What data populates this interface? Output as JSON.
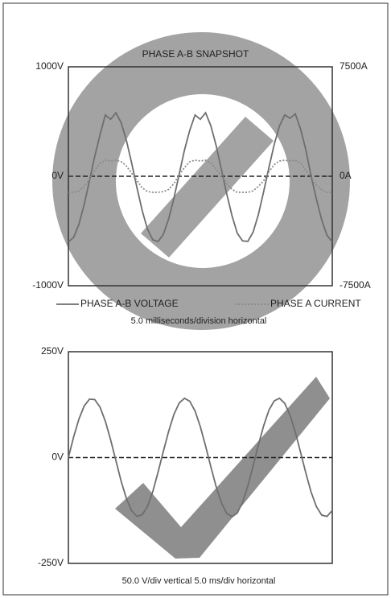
{
  "chart_data": [
    {
      "type": "line",
      "title": "PHASE A-B SNAPSHOT",
      "xlabel": "5.0 milliseconds/division horizontal",
      "x": [
        0,
        1,
        2,
        3,
        4,
        5,
        6,
        7,
        8,
        9,
        10,
        11,
        12,
        13,
        14,
        15,
        16,
        17,
        18,
        19,
        20,
        21,
        22,
        23,
        24,
        25,
        26,
        27,
        28,
        29,
        30,
        31,
        32,
        33,
        34,
        35,
        36,
        37,
        38,
        39,
        40,
        41,
        42,
        43,
        44,
        45,
        46,
        47,
        48,
        49,
        50
      ],
      "xlim": [
        0,
        50
      ],
      "ylim": [
        -1000,
        1000
      ],
      "yticks": [
        {
          "value": -1000,
          "label": "-1000V"
        },
        {
          "value": 0,
          "label": "0V"
        },
        {
          "value": 1000,
          "label": "1000V"
        }
      ],
      "y2lim": [
        -7500,
        7500
      ],
      "y2ticks": [
        {
          "value": -7500,
          "label": "-7500A"
        },
        {
          "value": 0,
          "label": "0A"
        },
        {
          "value": 7500,
          "label": "7500A"
        }
      ],
      "series": [
        {
          "name": "PHASE A-B VOLTAGE",
          "color": "#6e6e6e",
          "line_style": "solid",
          "values": [
            -600,
            -558,
            -438,
            -257,
            -40,
            183,
            380,
            560,
            520,
            580,
            489,
            326,
            118,
            -106,
            -316,
            -485,
            -581,
            -596,
            -530,
            -390,
            -200,
            20,
            240,
            420,
            560,
            520,
            580,
            460,
            280,
            60,
            -160,
            -360,
            -520,
            -590,
            -595,
            -510,
            -350,
            -140,
            80,
            290,
            460,
            560,
            530,
            570,
            430,
            240,
            0,
            -210,
            -400,
            -540,
            -600
          ]
        },
        {
          "name": "PHASE A CURRENT",
          "color": "#8a8a8a",
          "line_style": "dotted",
          "axis": "y2",
          "values": [
            -1100,
            -1100,
            -1000,
            -700,
            -200,
            400,
            900,
            1100,
            1050,
            1100,
            1000,
            700,
            200,
            -300,
            -800,
            -1050,
            -1100,
            -1100,
            -1050,
            -900,
            -500,
            100,
            600,
            1000,
            1100,
            1050,
            1100,
            900,
            500,
            0,
            -500,
            -900,
            -1100,
            -1100,
            -1100,
            -1000,
            -700,
            -300,
            300,
            800,
            1050,
            1100,
            1050,
            1100,
            900,
            400,
            -100,
            -600,
            -950,
            -1100,
            -1100
          ]
        }
      ]
    },
    {
      "type": "line",
      "xlabel": "50.0 V/div vertical 5.0 ms/div horizontal",
      "x": [
        0,
        1,
        2,
        3,
        4,
        5,
        6,
        7,
        8,
        9,
        10,
        11,
        12,
        13,
        14,
        15,
        16,
        17,
        18,
        19,
        20,
        21,
        22,
        23,
        24,
        25,
        26,
        27,
        28,
        29,
        30,
        31,
        32,
        33,
        34,
        35,
        36,
        37,
        38,
        39,
        40,
        41,
        42,
        43,
        44,
        45,
        46,
        47,
        48,
        49,
        50
      ],
      "xlim": [
        0,
        50
      ],
      "ylim": [
        -250,
        250
      ],
      "yticks": [
        {
          "value": -250,
          "label": "-250V"
        },
        {
          "value": 0,
          "label": "0V"
        },
        {
          "value": 250,
          "label": "250V"
        }
      ],
      "series": [
        {
          "color": "#6e6e6e",
          "line_style": "solid",
          "values": [
            0,
            49,
            91,
            122,
            138,
            137,
            119,
            86,
            42,
            -7,
            -56,
            -97,
            -126,
            -139,
            -135,
            -115,
            -80,
            -34,
            15,
            62,
            102,
            129,
            140,
            133,
            110,
            73,
            27,
            -22,
            -69,
            -107,
            -132,
            -140,
            -131,
            -106,
            -67,
            -20,
            30,
            75,
            112,
            134,
            140,
            128,
            100,
            60,
            12,
            -37,
            -82,
            -116,
            -136,
            -139,
            -125
          ]
        }
      ]
    }
  ]
}
